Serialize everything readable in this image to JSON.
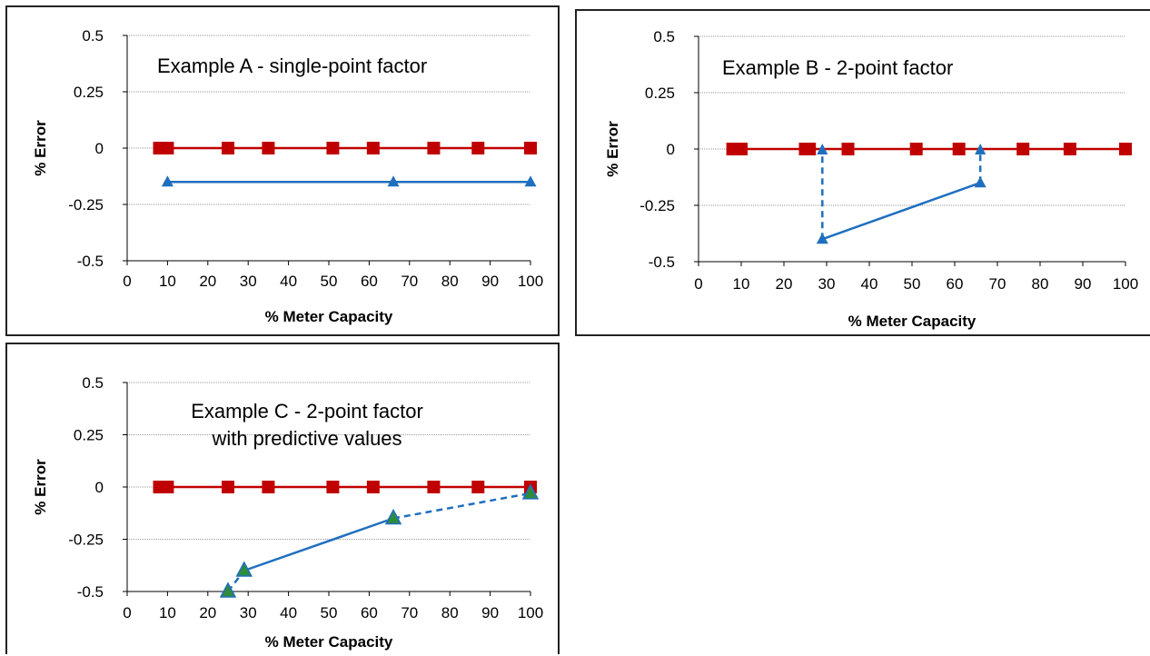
{
  "chart_data": [
    {
      "type": "line",
      "title": "Example A - single-point factor",
      "xlabel": "% Meter Capacity",
      "ylabel": "% Error",
      "xlim": [
        0,
        100
      ],
      "ylim": [
        -0.5,
        0.5
      ],
      "xticks": [
        "0",
        "10",
        "20",
        "30",
        "40",
        "50",
        "60",
        "70",
        "80",
        "90",
        "100"
      ],
      "yticks": [
        "0.5",
        "0.25",
        "0",
        "-0.25",
        "-0.5"
      ],
      "grid": true,
      "series": [
        {
          "color": "#c00000",
          "marker": "square",
          "style": "solid",
          "x": [
            8,
            10,
            25,
            35,
            51,
            61,
            76,
            87,
            100
          ],
          "y": [
            0,
            0,
            0,
            0,
            0,
            0,
            0,
            0,
            0
          ]
        },
        {
          "color": "#1f6fbf",
          "marker": "triangle",
          "style": "solid",
          "x": [
            10,
            66,
            100
          ],
          "y": [
            -0.15,
            -0.15,
            -0.15
          ]
        }
      ]
    },
    {
      "type": "line",
      "title": "Example B - 2-point factor",
      "xlabel": "% Meter Capacity",
      "ylabel": "% Error",
      "xlim": [
        0,
        100
      ],
      "ylim": [
        -0.5,
        0.5
      ],
      "xticks": [
        "0",
        "10",
        "20",
        "30",
        "40",
        "50",
        "60",
        "70",
        "80",
        "90",
        "100"
      ],
      "yticks": [
        "0.5",
        "0.25",
        "0",
        "-0.25",
        "-0.5"
      ],
      "grid": true,
      "series": [
        {
          "color": "#c00000",
          "marker": "square",
          "style": "solid",
          "x": [
            8,
            10,
            25,
            26,
            35,
            51,
            61,
            76,
            87,
            100
          ],
          "y": [
            0,
            0,
            0,
            0,
            0,
            0,
            0,
            0,
            0,
            0
          ]
        },
        {
          "color": "#1f6fbf",
          "marker": "triangle",
          "style": "solid",
          "x": [
            29,
            66
          ],
          "y": [
            -0.4,
            -0.15
          ]
        },
        {
          "color": "#1f6fbf",
          "marker": "triangle-end",
          "style": "dashed",
          "x": [
            29,
            29
          ],
          "y": [
            -0.4,
            0
          ]
        },
        {
          "color": "#1f6fbf",
          "marker": "triangle-end",
          "style": "dashed",
          "x": [
            66,
            66
          ],
          "y": [
            -0.15,
            0
          ]
        }
      ]
    },
    {
      "type": "line",
      "title": "Example C - 2-point factor\nwith predictive values",
      "title_lines": [
        "Example C - 2-point factor",
        "with predictive values"
      ],
      "xlabel": "% Meter Capacity",
      "ylabel": "% Error",
      "xlim": [
        0,
        100
      ],
      "ylim": [
        -0.5,
        0.5
      ],
      "xticks": [
        "0",
        "10",
        "20",
        "30",
        "40",
        "50",
        "60",
        "70",
        "80",
        "90",
        "100"
      ],
      "yticks": [
        "0.5",
        "0.25",
        "0",
        "-0.25",
        "-0.5"
      ],
      "grid": true,
      "series": [
        {
          "color": "#c00000",
          "marker": "square",
          "style": "solid",
          "x": [
            8,
            10,
            25,
            35,
            51,
            61,
            76,
            87,
            100
          ],
          "y": [
            0,
            0,
            0,
            0,
            0,
            0,
            0,
            0,
            0
          ]
        },
        {
          "color": "#1f6fbf",
          "marker": "triangle",
          "style": "solid",
          "x": [
            29,
            66
          ],
          "y": [
            -0.4,
            -0.15
          ]
        },
        {
          "color": "#1f6fbf",
          "marker": "none",
          "style": "dashed",
          "x": [
            25,
            29
          ],
          "y": [
            -0.5,
            -0.4
          ]
        },
        {
          "color": "#1f6fbf",
          "marker": "none",
          "style": "dashed",
          "x": [
            66,
            100
          ],
          "y": [
            -0.15,
            -0.03
          ]
        },
        {
          "color": "#2e8b3e",
          "marker": "triangle-green",
          "style": "none",
          "x": [
            25,
            29,
            66,
            100
          ],
          "y": [
            -0.5,
            -0.4,
            -0.15,
            -0.03
          ]
        }
      ]
    }
  ]
}
